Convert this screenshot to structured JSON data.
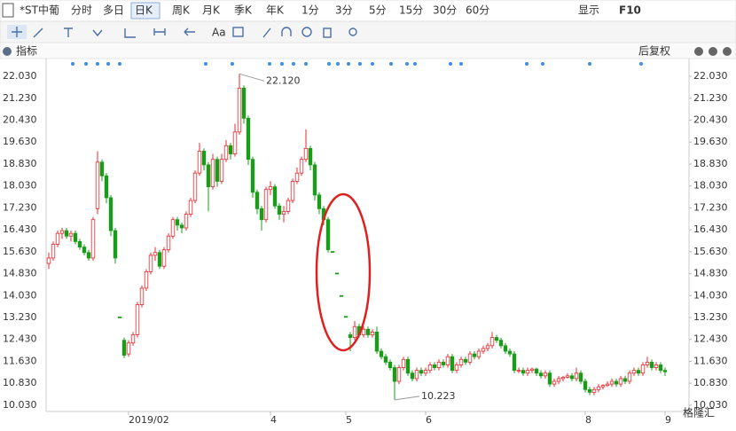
{
  "toolbar": {
    "stock": "*ST中葡",
    "periods": [
      "分时",
      "多日",
      "日K",
      "周K",
      "月K",
      "季K",
      "年K",
      "1分",
      "3分",
      "5分",
      "15分",
      "30分",
      "60分"
    ],
    "selected_period": 2,
    "display": "显示",
    "f10": "F10",
    "text_tool": "Aa"
  },
  "indicator_bar": {
    "label": "指标",
    "adjust": "后复权"
  },
  "watermark": "格隆汇",
  "chart_data": {
    "type": "candlestick",
    "grid": false,
    "colors": {
      "up": "#e8292e",
      "down": "#1a9c1a"
    },
    "ylim": [
      9.8,
      22.68
    ],
    "yticks": [
      {
        "value": 10.03,
        "label": "10.030"
      },
      {
        "value": 10.83,
        "label": "10.830"
      },
      {
        "value": 11.63,
        "label": "11.630"
      },
      {
        "value": 12.43,
        "label": "12.430"
      },
      {
        "value": 13.23,
        "label": "13.230"
      },
      {
        "value": 14.03,
        "label": "14.030"
      },
      {
        "value": 14.83,
        "label": "14.830"
      },
      {
        "value": 15.63,
        "label": "15.630"
      },
      {
        "value": 16.43,
        "label": "16.430"
      },
      {
        "value": 17.23,
        "label": "17.230"
      },
      {
        "value": 18.03,
        "label": "18.030"
      },
      {
        "value": 18.83,
        "label": "18.830"
      },
      {
        "value": 19.63,
        "label": "19.630"
      },
      {
        "value": 20.43,
        "label": "20.430"
      },
      {
        "value": 21.23,
        "label": "21.230"
      },
      {
        "value": 22.03,
        "label": "22.030"
      }
    ],
    "annotations": [
      {
        "value": 22.12,
        "label": "22.120"
      },
      {
        "value": 10.223,
        "label": "10.223"
      }
    ],
    "categories": [
      null,
      null,
      null,
      null,
      null,
      null,
      null,
      null,
      null,
      null,
      null,
      null,
      null,
      null,
      null,
      null,
      null,
      null,
      "2019/02",
      null,
      null,
      null,
      null,
      null,
      null,
      null,
      null,
      null,
      null,
      null,
      null,
      null,
      null,
      null,
      null,
      null,
      null,
      null,
      null,
      null,
      null,
      null,
      null,
      null,
      null,
      null,
      null,
      null,
      null,
      null,
      "4",
      null,
      null,
      null,
      null,
      null,
      null,
      null,
      null,
      null,
      null,
      null,
      null,
      null,
      null,
      null,
      null,
      "5",
      null,
      null,
      null,
      null,
      null,
      null,
      null,
      null,
      null,
      null,
      null,
      null,
      null,
      null,
      null,
      null,
      null,
      "6",
      null,
      null,
      null,
      null,
      null,
      null,
      null,
      null,
      null,
      null,
      null,
      null,
      null,
      null,
      null,
      null,
      null,
      null,
      null,
      null,
      null,
      null,
      null,
      null,
      null,
      null,
      null,
      null,
      null,
      null,
      null,
      null,
      null,
      null,
      null,
      "8",
      null,
      null,
      null,
      null,
      null,
      null,
      null,
      null,
      null,
      null,
      null,
      null,
      null,
      null,
      null,
      null,
      null,
      "9"
    ],
    "candles": [
      [
        15.2,
        15.6,
        15.0,
        15.4
      ],
      [
        15.4,
        16.0,
        15.3,
        15.9
      ],
      [
        15.9,
        16.4,
        15.8,
        16.3
      ],
      [
        16.3,
        16.5,
        16.1,
        16.4
      ],
      [
        16.4,
        16.5,
        16.1,
        16.2
      ],
      [
        16.2,
        16.4,
        16.0,
        16.3
      ],
      [
        16.3,
        16.4,
        15.9,
        16.0
      ],
      [
        16.0,
        16.1,
        15.7,
        15.8
      ],
      [
        15.8,
        15.9,
        15.5,
        15.6
      ],
      [
        15.6,
        15.7,
        15.3,
        15.4
      ],
      [
        15.4,
        16.9,
        15.3,
        16.8
      ],
      [
        17.2,
        19.3,
        17.0,
        18.9
      ],
      [
        18.9,
        19.0,
        18.2,
        18.4
      ],
      [
        18.4,
        18.5,
        17.4,
        17.6
      ],
      [
        17.6,
        17.7,
        16.2,
        16.4
      ],
      [
        16.4,
        16.5,
        15.2,
        15.4
      ],
      [
        13.25,
        13.25,
        13.25,
        13.25
      ],
      [
        12.4,
        12.5,
        11.75,
        11.85
      ],
      [
        11.9,
        12.4,
        11.8,
        12.3
      ],
      [
        12.3,
        12.7,
        12.2,
        12.6
      ],
      [
        12.6,
        13.8,
        12.5,
        13.7
      ],
      [
        13.7,
        14.4,
        13.6,
        14.3
      ],
      [
        14.3,
        15.0,
        14.2,
        14.9
      ],
      [
        14.9,
        15.6,
        14.8,
        15.5
      ],
      [
        15.5,
        15.8,
        15.3,
        15.6
      ],
      [
        15.6,
        15.7,
        15.0,
        15.1
      ],
      [
        15.1,
        15.8,
        15.0,
        15.7
      ],
      [
        15.7,
        16.3,
        15.6,
        16.2
      ],
      [
        16.2,
        16.9,
        16.1,
        16.8
      ],
      [
        16.8,
        16.9,
        16.4,
        16.6
      ],
      [
        16.6,
        16.7,
        16.3,
        16.5
      ],
      [
        16.5,
        17.1,
        16.4,
        17.0
      ],
      [
        17.0,
        17.6,
        16.9,
        17.5
      ],
      [
        17.5,
        18.6,
        17.4,
        18.5
      ],
      [
        18.5,
        19.6,
        18.4,
        19.3
      ],
      [
        19.3,
        19.4,
        18.6,
        18.8
      ],
      [
        18.8,
        18.9,
        17.1,
        18.0
      ],
      [
        18.0,
        19.2,
        17.9,
        19.0
      ],
      [
        19.0,
        19.1,
        18.0,
        18.2
      ],
      [
        18.2,
        19.2,
        18.1,
        19.0
      ],
      [
        19.0,
        19.7,
        18.9,
        19.5
      ],
      [
        19.5,
        19.6,
        19.0,
        19.2
      ],
      [
        19.2,
        20.3,
        19.1,
        20.0
      ],
      [
        20.0,
        22.12,
        19.9,
        21.6
      ],
      [
        21.6,
        21.7,
        20.3,
        20.5
      ],
      [
        20.5,
        20.6,
        18.8,
        19.0
      ],
      [
        19.0,
        19.1,
        17.6,
        17.8
      ],
      [
        17.8,
        17.9,
        17.0,
        17.2
      ],
      [
        17.2,
        17.3,
        16.4,
        16.8
      ],
      [
        16.8,
        18.0,
        16.7,
        17.9
      ],
      [
        17.9,
        18.2,
        17.7,
        18.0
      ],
      [
        18.0,
        18.1,
        17.2,
        17.3
      ],
      [
        17.3,
        17.4,
        16.8,
        17.0
      ],
      [
        17.0,
        17.3,
        16.7,
        17.1
      ],
      [
        17.1,
        17.6,
        17.0,
        17.5
      ],
      [
        17.5,
        18.3,
        17.4,
        18.2
      ],
      [
        18.2,
        18.7,
        18.1,
        18.5
      ],
      [
        18.5,
        19.1,
        18.4,
        19.0
      ],
      [
        19.0,
        20.1,
        18.9,
        19.4
      ],
      [
        19.4,
        19.5,
        18.6,
        18.8
      ],
      [
        18.8,
        18.9,
        17.5,
        17.7
      ],
      [
        17.7,
        17.8,
        17.0,
        17.2
      ],
      [
        17.2,
        17.3,
        16.6,
        16.8
      ],
      [
        16.8,
        16.9,
        15.6,
        15.7
      ],
      [
        15.64,
        15.64,
        15.64,
        15.64
      ],
      [
        14.85,
        14.85,
        14.85,
        14.85
      ],
      [
        14.03,
        14.03,
        14.03,
        14.03
      ],
      [
        13.27,
        13.27,
        13.27,
        13.27
      ],
      [
        12.6,
        12.7,
        12.0,
        12.5
      ],
      [
        12.5,
        13.1,
        12.4,
        12.9
      ],
      [
        12.9,
        13.0,
        12.5,
        12.6
      ],
      [
        12.6,
        12.9,
        12.5,
        12.8
      ],
      [
        12.8,
        12.9,
        12.5,
        12.6
      ],
      [
        12.6,
        12.8,
        12.5,
        12.7
      ],
      [
        12.7,
        12.9,
        11.9,
        12.0
      ],
      [
        12.0,
        12.1,
        11.7,
        11.8
      ],
      [
        11.8,
        11.9,
        11.5,
        11.6
      ],
      [
        11.6,
        11.7,
        11.3,
        11.4
      ],
      [
        11.4,
        11.5,
        10.223,
        10.9
      ],
      [
        10.9,
        11.5,
        10.8,
        11.4
      ],
      [
        11.4,
        11.8,
        11.3,
        11.7
      ],
      [
        11.7,
        11.8,
        11.1,
        11.2
      ],
      [
        11.2,
        11.3,
        10.9,
        11.0
      ],
      [
        11.0,
        11.4,
        10.9,
        11.3
      ],
      [
        11.3,
        11.4,
        11.1,
        11.2
      ],
      [
        11.2,
        11.4,
        11.1,
        11.3
      ],
      [
        11.3,
        11.6,
        11.2,
        11.5
      ],
      [
        11.5,
        11.6,
        11.3,
        11.4
      ],
      [
        11.4,
        11.7,
        11.3,
        11.6
      ],
      [
        11.6,
        11.7,
        11.4,
        11.5
      ],
      [
        11.5,
        11.9,
        11.4,
        11.8
      ],
      [
        11.8,
        11.9,
        11.2,
        11.3
      ],
      [
        11.3,
        11.6,
        11.2,
        11.5
      ],
      [
        11.5,
        11.8,
        11.4,
        11.7
      ],
      [
        11.7,
        11.8,
        11.5,
        11.6
      ],
      [
        11.6,
        12.0,
        11.5,
        11.9
      ],
      [
        11.9,
        12.0,
        11.7,
        11.8
      ],
      [
        11.8,
        12.1,
        11.7,
        12.0
      ],
      [
        12.0,
        12.2,
        11.9,
        12.1
      ],
      [
        12.1,
        12.3,
        12.0,
        12.2
      ],
      [
        12.2,
        12.7,
        12.1,
        12.5
      ],
      [
        12.5,
        12.6,
        12.3,
        12.4
      ],
      [
        12.4,
        12.5,
        12.1,
        12.2
      ],
      [
        12.2,
        12.3,
        11.9,
        12.0
      ],
      [
        12.0,
        12.1,
        11.8,
        11.9
      ],
      [
        11.9,
        12.0,
        11.2,
        11.3
      ],
      [
        11.3,
        11.4,
        11.2,
        11.3
      ],
      [
        11.3,
        11.4,
        11.1,
        11.2
      ],
      [
        11.2,
        11.4,
        11.1,
        11.3
      ],
      [
        11.3,
        11.4,
        11.2,
        11.35
      ],
      [
        11.35,
        11.4,
        11.1,
        11.2
      ],
      [
        11.2,
        11.3,
        11.0,
        11.1
      ],
      [
        11.1,
        11.3,
        11.0,
        11.2
      ],
      [
        11.2,
        11.3,
        10.7,
        10.8
      ],
      [
        10.8,
        11.0,
        10.7,
        10.9
      ],
      [
        10.9,
        11.1,
        10.8,
        11.0
      ],
      [
        11.0,
        11.1,
        10.9,
        11.05
      ],
      [
        11.05,
        11.2,
        11.0,
        11.1
      ],
      [
        11.1,
        11.2,
        10.9,
        11.0
      ],
      [
        11.0,
        11.4,
        10.9,
        11.2
      ],
      [
        11.2,
        11.3,
        10.8,
        10.9
      ],
      [
        10.9,
        11.0,
        10.5,
        10.6
      ],
      [
        10.6,
        10.7,
        10.4,
        10.5
      ],
      [
        10.5,
        10.7,
        10.4,
        10.6
      ],
      [
        10.6,
        10.8,
        10.5,
        10.7
      ],
      [
        10.7,
        10.8,
        10.6,
        10.75
      ],
      [
        10.75,
        10.9,
        10.7,
        10.8
      ],
      [
        10.8,
        11.0,
        10.7,
        10.9
      ],
      [
        10.9,
        11.0,
        10.7,
        10.8
      ],
      [
        10.8,
        11.1,
        10.7,
        11.0
      ],
      [
        11.0,
        11.1,
        10.8,
        10.9
      ],
      [
        10.9,
        11.3,
        10.8,
        11.2
      ],
      [
        11.2,
        11.4,
        11.1,
        11.3
      ],
      [
        11.3,
        11.4,
        11.1,
        11.2
      ],
      [
        11.2,
        11.6,
        11.1,
        11.5
      ],
      [
        11.5,
        11.8,
        11.4,
        11.6
      ],
      [
        11.6,
        11.7,
        11.3,
        11.4
      ],
      [
        11.4,
        11.6,
        11.3,
        11.5
      ],
      [
        11.5,
        11.6,
        11.2,
        11.3
      ],
      [
        11.3,
        11.4,
        11.1,
        11.25
      ]
    ]
  }
}
